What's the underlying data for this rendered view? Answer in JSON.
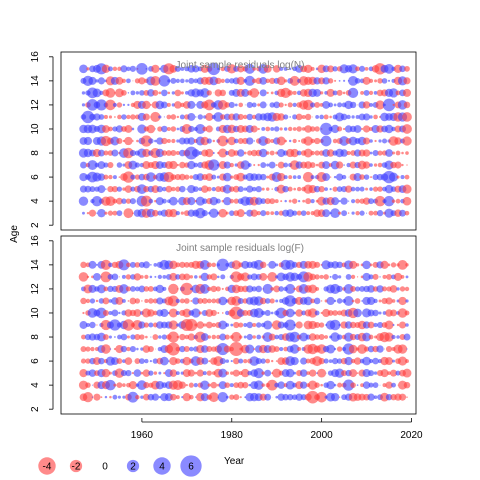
{
  "chart_data": {
    "type": "scatter",
    "subtype": "bubble",
    "xlabel": "Year",
    "ylabel": "Age",
    "xlim": [
      1942,
      2021
    ],
    "x_ticks": [
      1960,
      1980,
      2000,
      2020
    ],
    "y_ticks": [
      2,
      4,
      6,
      8,
      10,
      12,
      14,
      16
    ],
    "grid": false,
    "colors": {
      "positive": "#3c3cff",
      "negative": "#ff3c3c",
      "text_title": "#808080"
    },
    "legend": {
      "placement": "bottom-left",
      "values": [
        -4,
        -2,
        0,
        2,
        4,
        6
      ],
      "labels": [
        "-4",
        "-2",
        "0",
        "2",
        "4",
        "6"
      ]
    },
    "panels": [
      {
        "title": "Joint sample residuals log(N)",
        "ylim": [
          1.6,
          16.4
        ],
        "ages": [
          3,
          15
        ],
        "years": [
          1947,
          2019
        ],
        "seed": 7
      },
      {
        "title": "Joint sample residuals log(F)",
        "ylim": [
          1.6,
          16.4
        ],
        "ages": [
          3,
          14
        ],
        "years": [
          1947,
          2019
        ],
        "seed": 23
      }
    ]
  }
}
